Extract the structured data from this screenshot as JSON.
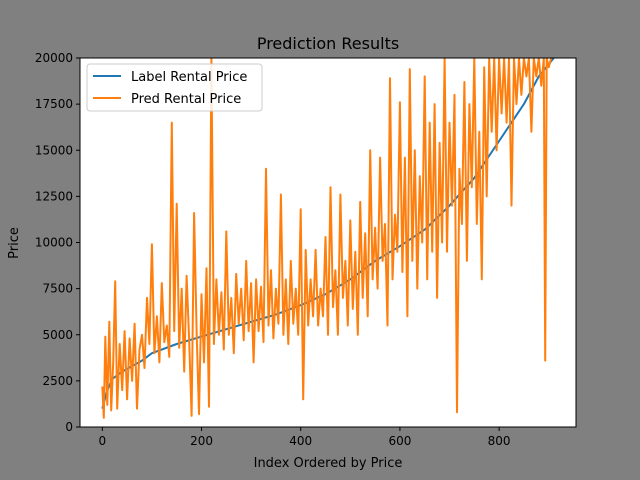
{
  "chart_data": {
    "type": "line",
    "title": "Prediction Results",
    "xlabel": "Index Ordered by Price",
    "ylabel": "Price",
    "xlim": [
      -45,
      955
    ],
    "ylim": [
      0,
      20000
    ],
    "x_ticks": [
      0,
      200,
      400,
      600,
      800
    ],
    "y_ticks": [
      0,
      2500,
      5000,
      7500,
      10000,
      12500,
      15000,
      17500,
      20000
    ],
    "legend_position": "top-left",
    "grid": false,
    "n_points": 910,
    "series": [
      {
        "name": "Label Rental Price",
        "color": "#1f77b4",
        "points": [
          [
            0,
            1000
          ],
          [
            10,
            2000
          ],
          [
            20,
            2600
          ],
          [
            40,
            3000
          ],
          [
            60,
            3300
          ],
          [
            80,
            3600
          ],
          [
            100,
            4000
          ],
          [
            150,
            4500
          ],
          [
            200,
            4900
          ],
          [
            250,
            5300
          ],
          [
            300,
            5700
          ],
          [
            350,
            6100
          ],
          [
            400,
            6600
          ],
          [
            450,
            7200
          ],
          [
            500,
            8000
          ],
          [
            550,
            9000
          ],
          [
            600,
            9800
          ],
          [
            650,
            10700
          ],
          [
            700,
            12000
          ],
          [
            750,
            13500
          ],
          [
            800,
            15500
          ],
          [
            850,
            17500
          ],
          [
            880,
            19000
          ],
          [
            910,
            20000
          ]
        ]
      },
      {
        "name": "Pred Rental Price",
        "color": "#ff7f0e",
        "points": [
          [
            0,
            2200
          ],
          [
            3,
            500
          ],
          [
            6,
            4900
          ],
          [
            10,
            1200
          ],
          [
            14,
            5700
          ],
          [
            18,
            900
          ],
          [
            22,
            3500
          ],
          [
            26,
            7900
          ],
          [
            30,
            1000
          ],
          [
            35,
            4500
          ],
          [
            40,
            2000
          ],
          [
            45,
            5200
          ],
          [
            50,
            1500
          ],
          [
            55,
            4800
          ],
          [
            60,
            2500
          ],
          [
            65,
            5600
          ],
          [
            70,
            1000
          ],
          [
            75,
            4200
          ],
          [
            80,
            5000
          ],
          [
            85,
            3200
          ],
          [
            90,
            7000
          ],
          [
            95,
            4500
          ],
          [
            100,
            9900
          ],
          [
            105,
            4000
          ],
          [
            110,
            6000
          ],
          [
            115,
            3500
          ],
          [
            120,
            7800
          ],
          [
            125,
            4600
          ],
          [
            130,
            5500
          ],
          [
            135,
            3800
          ],
          [
            140,
            16500
          ],
          [
            145,
            5200
          ],
          [
            150,
            12100
          ],
          [
            155,
            4300
          ],
          [
            160,
            7500
          ],
          [
            165,
            3000
          ],
          [
            170,
            8200
          ],
          [
            175,
            4800
          ],
          [
            180,
            600
          ],
          [
            185,
            11600
          ],
          [
            190,
            5200
          ],
          [
            195,
            700
          ],
          [
            200,
            7200
          ],
          [
            205,
            3500
          ],
          [
            210,
            8600
          ],
          [
            215,
            1100
          ],
          [
            220,
            20000
          ],
          [
            225,
            4500
          ],
          [
            230,
            8000
          ],
          [
            235,
            5000
          ],
          [
            240,
            7300
          ],
          [
            245,
            4200
          ],
          [
            250,
            10600
          ],
          [
            255,
            5000
          ],
          [
            260,
            7000
          ],
          [
            265,
            4000
          ],
          [
            270,
            8300
          ],
          [
            275,
            5600
          ],
          [
            280,
            7500
          ],
          [
            285,
            4700
          ],
          [
            290,
            9000
          ],
          [
            295,
            5200
          ],
          [
            300,
            7800
          ],
          [
            305,
            3500
          ],
          [
            310,
            8000
          ],
          [
            315,
            5200
          ],
          [
            320,
            7600
          ],
          [
            325,
            4600
          ],
          [
            330,
            14000
          ],
          [
            335,
            5500
          ],
          [
            340,
            8500
          ],
          [
            345,
            4800
          ],
          [
            350,
            7500
          ],
          [
            355,
            5600
          ],
          [
            360,
            12600
          ],
          [
            365,
            5000
          ],
          [
            370,
            8000
          ],
          [
            375,
            4500
          ],
          [
            380,
            9000
          ],
          [
            385,
            5600
          ],
          [
            390,
            7500
          ],
          [
            395,
            5000
          ],
          [
            400,
            11800
          ],
          [
            405,
            1500
          ],
          [
            410,
            9600
          ],
          [
            415,
            5500
          ],
          [
            420,
            8000
          ],
          [
            425,
            6000
          ],
          [
            430,
            9600
          ],
          [
            435,
            5500
          ],
          [
            440,
            7500
          ],
          [
            445,
            6000
          ],
          [
            450,
            10300
          ],
          [
            455,
            5000
          ],
          [
            460,
            13000
          ],
          [
            465,
            6500
          ],
          [
            470,
            8500
          ],
          [
            475,
            5000
          ],
          [
            480,
            12600
          ],
          [
            485,
            7000
          ],
          [
            490,
            9000
          ],
          [
            495,
            5500
          ],
          [
            500,
            11200
          ],
          [
            505,
            6400
          ],
          [
            510,
            9500
          ],
          [
            515,
            5000
          ],
          [
            520,
            12200
          ],
          [
            525,
            7000
          ],
          [
            530,
            10500
          ],
          [
            535,
            6000
          ],
          [
            540,
            15000
          ],
          [
            545,
            8000
          ],
          [
            550,
            10800
          ],
          [
            555,
            7500
          ],
          [
            560,
            14600
          ],
          [
            565,
            9000
          ],
          [
            570,
            11000
          ],
          [
            575,
            5500
          ],
          [
            580,
            18900
          ],
          [
            585,
            8000
          ],
          [
            590,
            11500
          ],
          [
            595,
            9500
          ],
          [
            600,
            17600
          ],
          [
            605,
            8400
          ],
          [
            610,
            14600
          ],
          [
            615,
            6000
          ],
          [
            620,
            19400
          ],
          [
            625,
            9000
          ],
          [
            630,
            15000
          ],
          [
            635,
            7500
          ],
          [
            640,
            13600
          ],
          [
            645,
            10000
          ],
          [
            650,
            19000
          ],
          [
            655,
            8000
          ],
          [
            660,
            16500
          ],
          [
            665,
            9500
          ],
          [
            670,
            17500
          ],
          [
            675,
            7000
          ],
          [
            680,
            15400
          ],
          [
            685,
            10000
          ],
          [
            690,
            20000
          ],
          [
            695,
            9500
          ],
          [
            700,
            16500
          ],
          [
            705,
            12000
          ],
          [
            710,
            18000
          ],
          [
            715,
            800
          ],
          [
            720,
            14000
          ],
          [
            725,
            11000
          ],
          [
            730,
            18700
          ],
          [
            735,
            9000
          ],
          [
            740,
            17500
          ],
          [
            745,
            13000
          ],
          [
            750,
            20000
          ],
          [
            755,
            11000
          ],
          [
            760,
            16000
          ],
          [
            765,
            8000
          ],
          [
            770,
            19500
          ],
          [
            775,
            12500
          ],
          [
            780,
            20000
          ],
          [
            785,
            16000
          ],
          [
            790,
            20000
          ],
          [
            795,
            15000
          ],
          [
            800,
            20000
          ],
          [
            805,
            17000
          ],
          [
            810,
            20000
          ],
          [
            815,
            16500
          ],
          [
            820,
            20000
          ],
          [
            825,
            12000
          ],
          [
            830,
            20000
          ],
          [
            835,
            17500
          ],
          [
            840,
            20000
          ],
          [
            845,
            18000
          ],
          [
            850,
            20000
          ],
          [
            855,
            19000
          ],
          [
            860,
            20000
          ],
          [
            865,
            16000
          ],
          [
            870,
            20000
          ],
          [
            875,
            19000
          ],
          [
            880,
            20000
          ],
          [
            885,
            18500
          ],
          [
            890,
            20000
          ],
          [
            893,
            3600
          ],
          [
            896,
            20000
          ],
          [
            900,
            19500
          ],
          [
            905,
            20000
          ]
        ]
      }
    ]
  }
}
